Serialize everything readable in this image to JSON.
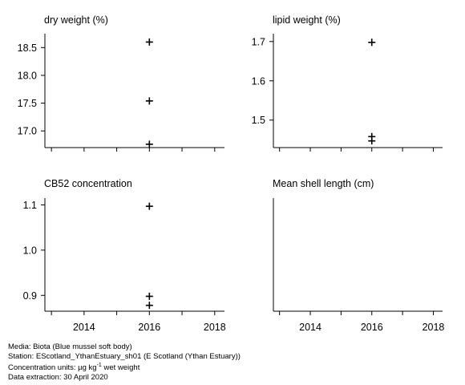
{
  "chart_data": [
    {
      "type": "scatter",
      "title": "dry weight (%)",
      "xlim": [
        2012.8,
        2018.3
      ],
      "ylim": [
        16.7,
        18.75
      ],
      "yticks": [
        17.0,
        17.5,
        18.0,
        18.5
      ],
      "yticklabels": [
        "17.0",
        "17.5",
        "18.0",
        "18.5"
      ],
      "xticks": [
        2013,
        2014,
        2015,
        2016,
        2017,
        2018
      ],
      "xticklabels": [],
      "series": [
        {
          "x": [
            2016,
            2016,
            2016
          ],
          "y": [
            18.6,
            17.54,
            16.76
          ]
        }
      ]
    },
    {
      "type": "scatter",
      "title": "lipid weight (%)",
      "xlim": [
        2012.8,
        2018.3
      ],
      "ylim": [
        1.43,
        1.72
      ],
      "yticks": [
        1.5,
        1.6,
        1.7
      ],
      "yticklabels": [
        "1.5",
        "1.6",
        "1.7"
      ],
      "xticks": [
        2013,
        2014,
        2015,
        2016,
        2017,
        2018
      ],
      "xticklabels": [],
      "series": [
        {
          "x": [
            2016,
            2016,
            2016
          ],
          "y": [
            1.698,
            1.458,
            1.447
          ]
        }
      ]
    },
    {
      "type": "scatter",
      "title": "CB52 concentration",
      "xlim": [
        2012.8,
        2018.3
      ],
      "ylim": [
        0.865,
        1.115
      ],
      "yticks": [
        0.9,
        1.0,
        1.1
      ],
      "yticklabels": [
        "0.9",
        "1.0",
        "1.1"
      ],
      "xticks": [
        2013,
        2014,
        2015,
        2016,
        2017,
        2018
      ],
      "xticklabels": [
        "2014",
        "2016",
        "2018"
      ],
      "series": [
        {
          "x": [
            2016,
            2016,
            2016
          ],
          "y": [
            1.097,
            0.898,
            0.878
          ]
        }
      ]
    },
    {
      "type": "scatter",
      "title": "Mean shell length (cm)",
      "xlim": [
        2012.8,
        2018.3
      ],
      "ylim": [
        0,
        1
      ],
      "yticks": [],
      "yticklabels": [],
      "xticks": [
        2013,
        2014,
        2015,
        2016,
        2017,
        2018
      ],
      "xticklabels": [
        "2014",
        "2016",
        "2018"
      ],
      "series": [
        {
          "x": [],
          "y": []
        }
      ]
    }
  ],
  "footer": {
    "media": "Media: Biota (Blue mussel soft body)",
    "station": "Station: EScotland_YthanEstuary_sh01 (E Scotland (Ythan Estuary))",
    "units_prefix": "Concentration units:  µg kg",
    "units_sup": "-1",
    "units_suffix": " wet weight",
    "extraction": "Data extraction: 30 April 2020"
  }
}
